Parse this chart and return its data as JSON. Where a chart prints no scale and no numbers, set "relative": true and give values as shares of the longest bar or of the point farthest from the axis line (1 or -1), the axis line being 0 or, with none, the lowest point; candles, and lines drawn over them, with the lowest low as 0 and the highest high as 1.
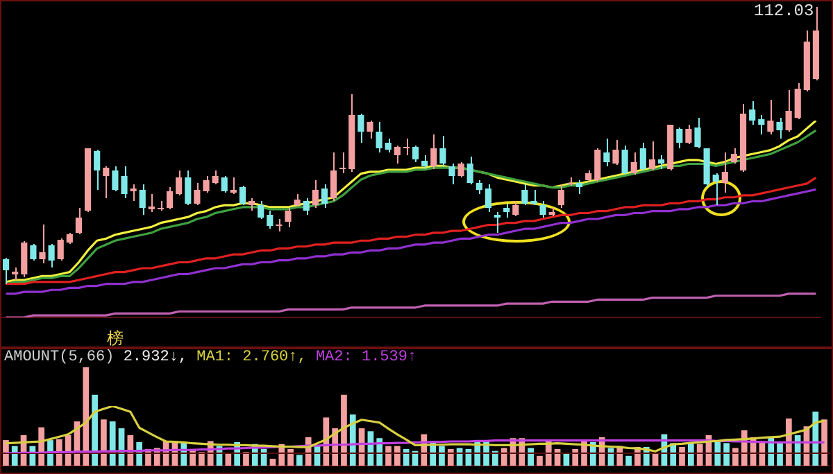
{
  "chart_data": [
    {
      "type": "candlestick",
      "relative": true,
      "tick_labels": false,
      "categories": [
        null,
        null,
        null,
        null,
        null,
        null,
        null,
        null,
        null,
        null,
        null,
        null,
        null,
        null,
        null,
        null,
        null,
        null,
        null,
        null,
        null,
        null,
        null,
        null,
        null,
        null,
        null,
        null,
        null,
        null,
        null,
        null,
        null,
        null,
        null,
        null,
        null,
        null,
        null,
        null,
        null,
        null,
        null,
        null,
        null,
        null,
        null,
        null,
        null,
        null,
        null,
        null,
        null,
        null,
        null,
        null,
        null,
        null,
        null,
        null,
        null,
        null,
        null,
        null,
        null,
        null,
        null,
        null,
        null,
        null,
        null,
        null,
        null,
        null,
        null,
        null,
        null,
        null,
        null,
        null,
        null,
        null,
        null,
        null,
        null,
        null,
        null,
        null,
        null,
        null
      ],
      "ohlc": [
        [
          0.09,
          0.095,
          0,
          0.05
        ],
        [
          0.035,
          0.06,
          0.015,
          0.045
        ],
        [
          0.035,
          0.155,
          0.025,
          0.15
        ],
        [
          0.14,
          0.145,
          0.085,
          0.09
        ],
        [
          0.09,
          0.215,
          0.075,
          0.115
        ],
        [
          0.14,
          0.145,
          0.06,
          0.085
        ],
        [
          0.09,
          0.165,
          0.085,
          0.16
        ],
        [
          0.15,
          0.185,
          0.145,
          0.18
        ],
        [
          0.185,
          0.275,
          0.18,
          0.24
        ],
        [
          0.265,
          0.49,
          0.26,
          0.49
        ],
        [
          0.48,
          0.485,
          0.34,
          0.41
        ],
        [
          0.39,
          0.425,
          0.31,
          0.42
        ],
        [
          0.41,
          0.425,
          0.335,
          0.34
        ],
        [
          0.39,
          0.425,
          0.31,
          0.325
        ],
        [
          0.335,
          0.36,
          0.3,
          0.345
        ],
        [
          0.34,
          0.36,
          0.25,
          0.275
        ],
        [
          0.27,
          0.325,
          0.26,
          0.28
        ],
        [
          0.27,
          0.3,
          0.265,
          0.275
        ],
        [
          0.275,
          0.35,
          0.27,
          0.335
        ],
        [
          0.325,
          0.41,
          0.32,
          0.385
        ],
        [
          0.385,
          0.41,
          0.285,
          0.29
        ],
        [
          0.29,
          0.365,
          0.285,
          0.34
        ],
        [
          0.335,
          0.39,
          0.33,
          0.375
        ],
        [
          0.365,
          0.41,
          0.36,
          0.39
        ],
        [
          0.385,
          0.39,
          0.33,
          0.335
        ],
        [
          0.33,
          0.385,
          0.325,
          0.34
        ],
        [
          0.35,
          0.355,
          0.285,
          0.29
        ],
        [
          0.285,
          0.31,
          0.265,
          0.3
        ],
        [
          0.285,
          0.3,
          0.235,
          0.24
        ],
        [
          0.25,
          0.265,
          0.2,
          0.21
        ],
        [
          0.21,
          0.235,
          0.19,
          0.215
        ],
        [
          0.225,
          0.275,
          0.205,
          0.265
        ],
        [
          0.285,
          0.325,
          0.28,
          0.305
        ],
        [
          0.3,
          0.31,
          0.25,
          0.265
        ],
        [
          0.285,
          0.375,
          0.275,
          0.34
        ],
        [
          0.345,
          0.36,
          0.275,
          0.29
        ],
        [
          0.31,
          0.475,
          0.3,
          0.41
        ],
        [
          0.415,
          0.475,
          0.4,
          0.42
        ],
        [
          0.415,
          0.685,
          0.405,
          0.61
        ],
        [
          0.61,
          0.615,
          0.51,
          0.55
        ],
        [
          0.55,
          0.59,
          0.525,
          0.585
        ],
        [
          0.55,
          0.585,
          0.475,
          0.49
        ],
        [
          0.51,
          0.525,
          0.475,
          0.485
        ],
        [
          0.465,
          0.5,
          0.435,
          0.495
        ],
        [
          0.49,
          0.525,
          0.465,
          0.495
        ],
        [
          0.495,
          0.5,
          0.44,
          0.45
        ],
        [
          0.445,
          0.465,
          0.415,
          0.425
        ],
        [
          0.425,
          0.54,
          0.415,
          0.49
        ],
        [
          0.49,
          0.535,
          0.425,
          0.435
        ],
        [
          0.425,
          0.435,
          0.36,
          0.39
        ],
        [
          0.39,
          0.44,
          0.385,
          0.435
        ],
        [
          0.435,
          0.46,
          0.36,
          0.365
        ],
        [
          0.365,
          0.375,
          0.325,
          0.34
        ],
        [
          0.345,
          0.36,
          0.26,
          0.275
        ],
        [
          0.25,
          0.26,
          0.185,
          0.24
        ],
        [
          0.275,
          0.29,
          0.24,
          0.26
        ],
        [
          0.25,
          0.3,
          0.245,
          0.285
        ],
        [
          0.34,
          0.36,
          0.285,
          0.29
        ],
        [
          0.3,
          0.34,
          0.285,
          0.29
        ],
        [
          0.285,
          0.3,
          0.24,
          0.25
        ],
        [
          0.25,
          0.275,
          0.245,
          0.26
        ],
        [
          0.285,
          0.36,
          0.275,
          0.34
        ],
        [
          0.36,
          0.385,
          0.355,
          0.365
        ],
        [
          0.365,
          0.375,
          0.325,
          0.35
        ],
        [
          0.375,
          0.41,
          0.37,
          0.4
        ],
        [
          0.375,
          0.49,
          0.37,
          0.485
        ],
        [
          0.475,
          0.525,
          0.425,
          0.44
        ],
        [
          0.435,
          0.52,
          0.43,
          0.485
        ],
        [
          0.485,
          0.5,
          0.395,
          0.4
        ],
        [
          0.4,
          0.475,
          0.395,
          0.44
        ],
        [
          0.49,
          0.51,
          0.41,
          0.415
        ],
        [
          0.415,
          0.515,
          0.41,
          0.45
        ],
        [
          0.45,
          0.465,
          0.415,
          0.435
        ],
        [
          0.415,
          0.575,
          0.41,
          0.575
        ],
        [
          0.56,
          0.565,
          0.49,
          0.51
        ],
        [
          0.51,
          0.575,
          0.505,
          0.56
        ],
        [
          0.565,
          0.6,
          0.49,
          0.495
        ],
        [
          0.49,
          0.49,
          0.35,
          0.36
        ],
        [
          0.395,
          0.4,
          0.285,
          0.37
        ],
        [
          0.365,
          0.475,
          0.33,
          0.405
        ],
        [
          0.44,
          0.49,
          0.435,
          0.47
        ],
        [
          0.41,
          0.65,
          0.405,
          0.615
        ],
        [
          0.63,
          0.66,
          0.575,
          0.59
        ],
        [
          0.595,
          0.61,
          0.54,
          0.575
        ],
        [
          0.55,
          0.665,
          0.54,
          0.59
        ],
        [
          0.585,
          0.6,
          0.525,
          0.555
        ],
        [
          0.555,
          0.7,
          0.55,
          0.625
        ],
        [
          0.6,
          0.725,
          0.595,
          0.705
        ],
        [
          0.7,
          0.915,
          0.695,
          0.875
        ],
        [
          0.74,
          1,
          0.735,
          0.915
        ]
      ],
      "colors": [
        "#80e8e8",
        "#f4a0a0",
        "#f4a0a0",
        "#80e8e8",
        "#f4a0a0",
        "#80e8e8",
        "#f4a0a0",
        "#f4a0a0",
        "#f4a0a0",
        "#f4a0a0",
        "#80e8e8",
        "#f4a0a0",
        "#80e8e8",
        "#80e8e8",
        "#f4a0a0",
        "#80e8e8",
        "#f4a0a0",
        "#f4a0a0",
        "#f4a0a0",
        "#f4a0a0",
        "#80e8e8",
        "#f4a0a0",
        "#f4a0a0",
        "#f4a0a0",
        "#80e8e8",
        "#f4a0a0",
        "#80e8e8",
        "#f4a0a0",
        "#80e8e8",
        "#80e8e8",
        "#f4a0a0",
        "#f4a0a0",
        "#f4a0a0",
        "#80e8e8",
        "#f4a0a0",
        "#80e8e8",
        "#f4a0a0",
        "#f4a0a0",
        "#f4a0a0",
        "#80e8e8",
        "#f4a0a0",
        "#80e8e8",
        "#80e8e8",
        "#f4a0a0",
        "#f4a0a0",
        "#80e8e8",
        "#80e8e8",
        "#f4a0a0",
        "#80e8e8",
        "#80e8e8",
        "#f4a0a0",
        "#80e8e8",
        "#80e8e8",
        "#80e8e8",
        "#80e8e8",
        "#80e8e8",
        "#f4a0a0",
        "#80e8e8",
        "#80e8e8",
        "#80e8e8",
        "#f4a0a0",
        "#f4a0a0",
        "#f4a0a0",
        "#80e8e8",
        "#f4a0a0",
        "#f4a0a0",
        "#80e8e8",
        "#f4a0a0",
        "#80e8e8",
        "#f4a0a0",
        "#80e8e8",
        "#f4a0a0",
        "#80e8e8",
        "#f4a0a0",
        "#80e8e8",
        "#f4a0a0",
        "#80e8e8",
        "#80e8e8",
        "#80e8e8",
        "#f4a0a0",
        "#f4a0a0",
        "#f4a0a0",
        "#80e8e8",
        "#80e8e8",
        "#f4a0a0",
        "#80e8e8",
        "#f4a0a0",
        "#f4a0a0",
        "#f4a0a0",
        "#f4a0a0"
      ],
      "annotations": [
        "112.03",
        "榜"
      ]
    },
    {
      "type": "line",
      "relative": true,
      "tick_labels": false,
      "marker": "none",
      "categories": [
        null,
        null,
        null,
        null,
        null,
        null,
        null,
        null,
        null,
        null,
        null,
        null,
        null,
        null,
        null,
        null,
        null,
        null,
        null,
        null,
        null,
        null,
        null,
        null,
        null,
        null,
        null,
        null,
        null,
        null,
        null,
        null,
        null,
        null,
        null,
        null,
        null,
        null,
        null,
        null,
        null,
        null,
        null,
        null,
        null,
        null,
        null,
        null,
        null,
        null,
        null,
        null,
        null,
        null,
        null,
        null,
        null,
        null,
        null,
        null,
        null,
        null,
        null,
        null,
        null,
        null,
        null,
        null,
        null,
        null,
        null,
        null,
        null,
        null,
        null,
        null,
        null,
        null,
        null,
        null,
        null,
        null,
        null,
        null,
        null,
        null,
        null,
        null,
        null,
        null
      ],
      "series": [
        {
          "color": "#c060b0",
          "values": [
            0,
            0,
            0,
            0.01,
            0.01,
            0.01,
            0.01,
            0.01,
            0.01,
            0.01,
            0.01,
            0.01,
            0.02,
            0.02,
            0.02,
            0.02,
            0.02,
            0.02,
            0.02,
            0.03,
            0.03,
            0.03,
            0.03,
            0.03,
            0.03,
            0.03,
            0.03,
            0.03,
            0.03,
            0.03,
            0.03,
            0.04,
            0.04,
            0.04,
            0.04,
            0.04,
            0.04,
            0.04,
            0.05,
            0.05,
            0.05,
            0.05,
            0.05,
            0.05,
            0.05,
            0.05,
            0.06,
            0.06,
            0.06,
            0.06,
            0.06,
            0.06,
            0.06,
            0.06,
            0.06,
            0.07,
            0.07,
            0.07,
            0.07,
            0.07,
            0.08,
            0.08,
            0.08,
            0.08,
            0.08,
            0.09,
            0.09,
            0.09,
            0.09,
            0.09,
            0.09,
            0.1,
            0.1,
            0.1,
            0.1,
            0.1,
            0.1,
            0.1,
            0.11,
            0.11,
            0.11,
            0.11,
            0.11,
            0.11,
            0.11,
            0.11,
            0.12,
            0.12,
            0.12,
            0.12
          ]
        },
        {
          "color": "#9030d0",
          "values": [
            0.12,
            0.12,
            0.13,
            0.13,
            0.13,
            0.14,
            0.14,
            0.15,
            0.15,
            0.16,
            0.16,
            0.17,
            0.17,
            0.17,
            0.18,
            0.18,
            0.19,
            0.2,
            0.21,
            0.22,
            0.22,
            0.23,
            0.24,
            0.25,
            0.25,
            0.26,
            0.27,
            0.27,
            0.28,
            0.28,
            0.29,
            0.29,
            0.3,
            0.3,
            0.31,
            0.31,
            0.32,
            0.32,
            0.33,
            0.33,
            0.34,
            0.34,
            0.35,
            0.35,
            0.36,
            0.37,
            0.37,
            0.38,
            0.38,
            0.39,
            0.4,
            0.4,
            0.41,
            0.42,
            0.42,
            0.43,
            0.44,
            0.45,
            0.45,
            0.46,
            0.47,
            0.48,
            0.48,
            0.49,
            0.5,
            0.5,
            0.51,
            0.52,
            0.52,
            0.53,
            0.53,
            0.54,
            0.54,
            0.54,
            0.55,
            0.55,
            0.56,
            0.56,
            0.57,
            0.57,
            0.58,
            0.58,
            0.59,
            0.59,
            0.6,
            0.61,
            0.62,
            0.63,
            0.64,
            0.65
          ]
        },
        {
          "color": "#e02020",
          "values": [
            0.17,
            0.17,
            0.17,
            0.18,
            0.18,
            0.18,
            0.18,
            0.18,
            0.19,
            0.2,
            0.21,
            0.22,
            0.23,
            0.23,
            0.24,
            0.25,
            0.25,
            0.26,
            0.27,
            0.28,
            0.28,
            0.29,
            0.3,
            0.3,
            0.31,
            0.32,
            0.32,
            0.33,
            0.34,
            0.34,
            0.35,
            0.35,
            0.36,
            0.36,
            0.37,
            0.37,
            0.38,
            0.38,
            0.38,
            0.39,
            0.39,
            0.4,
            0.4,
            0.41,
            0.41,
            0.42,
            0.42,
            0.43,
            0.43,
            0.44,
            0.44,
            0.45,
            0.46,
            0.47,
            0.47,
            0.48,
            0.48,
            0.49,
            0.49,
            0.5,
            0.51,
            0.52,
            0.52,
            0.53,
            0.53,
            0.54,
            0.54,
            0.55,
            0.56,
            0.56,
            0.57,
            0.57,
            0.57,
            0.58,
            0.58,
            0.59,
            0.59,
            0.6,
            0.6,
            0.61,
            0.61,
            0.62,
            0.62,
            0.63,
            0.64,
            0.65,
            0.66,
            0.67,
            0.68,
            0.71
          ]
        },
        {
          "color": "#3fa040",
          "values": [
            0.17,
            0.18,
            0.18,
            0.19,
            0.2,
            0.2,
            0.21,
            0.21,
            0.25,
            0.3,
            0.35,
            0.37,
            0.39,
            0.4,
            0.41,
            0.42,
            0.43,
            0.45,
            0.46,
            0.47,
            0.48,
            0.5,
            0.51,
            0.53,
            0.54,
            0.55,
            0.56,
            0.56,
            0.56,
            0.55,
            0.55,
            0.55,
            0.56,
            0.56,
            0.57,
            0.58,
            0.59,
            0.62,
            0.66,
            0.7,
            0.72,
            0.73,
            0.74,
            0.74,
            0.74,
            0.75,
            0.75,
            0.76,
            0.76,
            0.76,
            0.76,
            0.75,
            0.74,
            0.73,
            0.72,
            0.71,
            0.7,
            0.69,
            0.68,
            0.67,
            0.66,
            0.66,
            0.67,
            0.67,
            0.68,
            0.69,
            0.7,
            0.71,
            0.72,
            0.73,
            0.74,
            0.75,
            0.76,
            0.77,
            0.77,
            0.78,
            0.78,
            0.78,
            0.77,
            0.78,
            0.79,
            0.8,
            0.81,
            0.82,
            0.83,
            0.85,
            0.87,
            0.89,
            0.92,
            0.95
          ]
        },
        {
          "color": "#f0f040",
          "values": [
            0.18,
            0.19,
            0.19,
            0.2,
            0.21,
            0.21,
            0.22,
            0.23,
            0.28,
            0.34,
            0.39,
            0.4,
            0.42,
            0.43,
            0.44,
            0.45,
            0.46,
            0.48,
            0.49,
            0.5,
            0.51,
            0.53,
            0.54,
            0.56,
            0.57,
            0.57,
            0.58,
            0.58,
            0.57,
            0.56,
            0.56,
            0.56,
            0.57,
            0.58,
            0.59,
            0.6,
            0.61,
            0.65,
            0.69,
            0.73,
            0.74,
            0.74,
            0.75,
            0.75,
            0.75,
            0.76,
            0.76,
            0.77,
            0.77,
            0.76,
            0.76,
            0.75,
            0.74,
            0.73,
            0.71,
            0.7,
            0.69,
            0.68,
            0.67,
            0.67,
            0.66,
            0.67,
            0.68,
            0.68,
            0.69,
            0.7,
            0.71,
            0.72,
            0.73,
            0.74,
            0.75,
            0.76,
            0.77,
            0.78,
            0.79,
            0.8,
            0.8,
            0.79,
            0.78,
            0.79,
            0.81,
            0.82,
            0.83,
            0.84,
            0.85,
            0.87,
            0.9,
            0.92,
            0.96,
            1
          ]
        }
      ]
    },
    {
      "type": "bar",
      "relative": true,
      "tick_labels": false,
      "title": "AMOUNT(5,66)",
      "categories": [
        null,
        null,
        null,
        null,
        null,
        null,
        null,
        null,
        null,
        null,
        null,
        null,
        null,
        null,
        null,
        null,
        null,
        null,
        null,
        null,
        null,
        null,
        null,
        null,
        null,
        null,
        null,
        null,
        null,
        null,
        null,
        null,
        null,
        null,
        null,
        null,
        null,
        null,
        null,
        null,
        null,
        null,
        null,
        null,
        null,
        null,
        null,
        null,
        null,
        null,
        null,
        null,
        null,
        null,
        null,
        null,
        null,
        null,
        null,
        null,
        null,
        null,
        null,
        null,
        null,
        null,
        null,
        null,
        null,
        null,
        null,
        null,
        null,
        null,
        null,
        null,
        null,
        null,
        null,
        null,
        null,
        null,
        null,
        null,
        null,
        null,
        null,
        null,
        null,
        null,
        null,
        null,
        null
      ],
      "values": [
        0.26,
        0.2,
        0.31,
        0.2,
        0.39,
        0.26,
        0.27,
        0.31,
        0.45,
        1,
        0.72,
        0.47,
        0.45,
        0.38,
        0.31,
        0.24,
        0.17,
        0.18,
        0.25,
        0.25,
        0.23,
        0.17,
        0.14,
        0.25,
        0.2,
        0.12,
        0.24,
        0.14,
        0.22,
        0.17,
        0.07,
        0.22,
        0.17,
        0.11,
        0.29,
        0.2,
        0.49,
        0.38,
        0.72,
        0.52,
        0.38,
        0.35,
        0.28,
        0.2,
        0.2,
        0.17,
        0.15,
        0.32,
        0.24,
        0.2,
        0.17,
        0.18,
        0.17,
        0.24,
        0.26,
        0.15,
        0.18,
        0.28,
        0.28,
        0.18,
        0.1,
        0.26,
        0.17,
        0.12,
        0.17,
        0.25,
        0.24,
        0.29,
        0.18,
        0.2,
        0.1,
        0.19,
        0.19,
        0.12,
        0.32,
        0.23,
        0.19,
        0.23,
        0.22,
        0.31,
        0.25,
        0.23,
        0.18,
        0.36,
        0.29,
        0.25,
        0.29,
        0.23,
        0.48,
        0.31,
        0.4,
        0.55,
        0.47
      ],
      "colors": [
        "#f4a0a0",
        "#80e8e8",
        "#f4a0a0",
        "#80e8e8",
        "#f4a0a0",
        "#80e8e8",
        "#f4a0a0",
        "#f4a0a0",
        "#f4a0a0",
        "#f4a0a0",
        "#80e8e8",
        "#f4a0a0",
        "#80e8e8",
        "#80e8e8",
        "#f4a0a0",
        "#80e8e8",
        "#f4a0a0",
        "#f4a0a0",
        "#f4a0a0",
        "#f4a0a0",
        "#80e8e8",
        "#f4a0a0",
        "#f4a0a0",
        "#f4a0a0",
        "#80e8e8",
        "#f4a0a0",
        "#80e8e8",
        "#f4a0a0",
        "#80e8e8",
        "#80e8e8",
        "#f4a0a0",
        "#f4a0a0",
        "#f4a0a0",
        "#80e8e8",
        "#f4a0a0",
        "#80e8e8",
        "#f4a0a0",
        "#f4a0a0",
        "#f4a0a0",
        "#80e8e8",
        "#f4a0a0",
        "#80e8e8",
        "#80e8e8",
        "#f4a0a0",
        "#f4a0a0",
        "#80e8e8",
        "#80e8e8",
        "#f4a0a0",
        "#80e8e8",
        "#80e8e8",
        "#f4a0a0",
        "#80e8e8",
        "#80e8e8",
        "#80e8e8",
        "#80e8e8",
        "#80e8e8",
        "#f4a0a0",
        "#f4a0a0",
        "#f4a0a0",
        "#80e8e8",
        "#f4a0a0",
        "#f4a0a0",
        "#f4a0a0",
        "#80e8e8",
        "#f4a0a0",
        "#f4a0a0",
        "#80e8e8",
        "#f4a0a0",
        "#80e8e8",
        "#f4a0a0",
        "#80e8e8",
        "#f4a0a0",
        "#80e8e8",
        "#f4a0a0",
        "#80e8e8",
        "#80e8e8",
        "#f4a0a0",
        "#80e8e8",
        "#f4a0a0",
        "#f4a0a0",
        "#80e8e8",
        "#80e8e8",
        "#f4a0a0",
        "#f4a0a0",
        "#f4a0a0",
        "#f4a0a0",
        "#80e8e8",
        "#80e8e8",
        "#f4a0a0",
        "#80e8e8",
        "#f4a0a0",
        "#80e8e8",
        "#f4a0a0"
      ],
      "annotations": [
        "2.932↓,"
      ]
    },
    {
      "type": "line",
      "relative": true,
      "tick_labels": false,
      "marker": "none",
      "categories": [
        null,
        null,
        null,
        null,
        null,
        null,
        null,
        null,
        null,
        null,
        null,
        null,
        null,
        null,
        null,
        null,
        null,
        null,
        null,
        null,
        null,
        null,
        null,
        null,
        null,
        null,
        null,
        null,
        null,
        null,
        null,
        null,
        null,
        null,
        null,
        null,
        null,
        null,
        null,
        null,
        null,
        null,
        null,
        null,
        null,
        null,
        null,
        null,
        null,
        null,
        null,
        null,
        null,
        null,
        null,
        null,
        null,
        null,
        null,
        null,
        null,
        null,
        null,
        null,
        null,
        null,
        null,
        null,
        null,
        null,
        null,
        null,
        null,
        null,
        null,
        null,
        null,
        null,
        null,
        null,
        null,
        null,
        null,
        null,
        null,
        null,
        null,
        null,
        null,
        null,
        null,
        null,
        null
      ],
      "series": [
        {
          "color": "#d8d040",
          "values": [
            0.21,
            0.22,
            0.23,
            0.24,
            0.25,
            0.3,
            0.35,
            0.4,
            0.52,
            0.65,
            0.88,
            0.94,
            1,
            0.94,
            0.88,
            0.54,
            0.44,
            0.34,
            0.25,
            0.24,
            0.23,
            0.21,
            0.2,
            0.19,
            0.18,
            0.18,
            0.17,
            0.17,
            0.16,
            0.16,
            0.15,
            0.14,
            0.14,
            0.13,
            0.13,
            0.21,
            0.29,
            0.42,
            0.54,
            0.63,
            0.71,
            0.68,
            0.65,
            0.52,
            0.4,
            0.29,
            0.17,
            0.17,
            0.18,
            0.18,
            0.19,
            0.19,
            0.19,
            0.18,
            0.18,
            0.17,
            0.17,
            0.17,
            0.18,
            0.19,
            0.2,
            0.2,
            0.21,
            0.2,
            0.19,
            0.18,
            0.16,
            0.15,
            0.14,
            0.13,
            0.11,
            0.1,
            0.08,
            0.04,
            0.12,
            0.19,
            0.2,
            0.22,
            0.23,
            0.25,
            0.26,
            0.28,
            0.29,
            0.3,
            0.31,
            0.33,
            0.34,
            0.35,
            0.4,
            0.45,
            0.5,
            0.65,
            0.69
          ]
        },
        {
          "color": "#c040e0",
          "values": [
            0,
            0,
            0.01,
            0.01,
            0.01,
            0.02,
            0.02,
            0.02,
            0.03,
            0.03,
            0.03,
            0.04,
            0.04,
            0.05,
            0.05,
            0.05,
            0.06,
            0.06,
            0.06,
            0.07,
            0.07,
            0.07,
            0.08,
            0.08,
            0.09,
            0.1,
            0.1,
            0.11,
            0.12,
            0.12,
            0.13,
            0.14,
            0.14,
            0.15,
            0.16,
            0.16,
            0.17,
            0.18,
            0.18,
            0.19,
            0.2,
            0.2,
            0.21,
            0.21,
            0.22,
            0.22,
            0.23,
            0.23,
            0.24,
            0.24,
            0.25,
            0.25,
            0.25,
            0.26,
            0.26,
            0.27,
            0.27,
            0.27,
            0.27,
            0.27,
            0.27,
            0.27,
            0.27,
            0.27,
            0.27,
            0.27,
            0.27,
            0.27,
            0.27,
            0.27,
            0.27,
            0.27,
            0.27,
            0.27,
            0.27,
            0.27,
            0.27,
            0.27,
            0.27,
            0.27,
            0.26,
            0.26,
            0.25,
            0.25,
            0.24,
            0.24,
            0.23,
            0.23,
            0.23,
            0.23,
            0.23,
            0.23,
            0.23
          ]
        }
      ],
      "annotations": [
        "MA1: 2.760↑,",
        "MA2: 1.539↑"
      ]
    }
  ]
}
